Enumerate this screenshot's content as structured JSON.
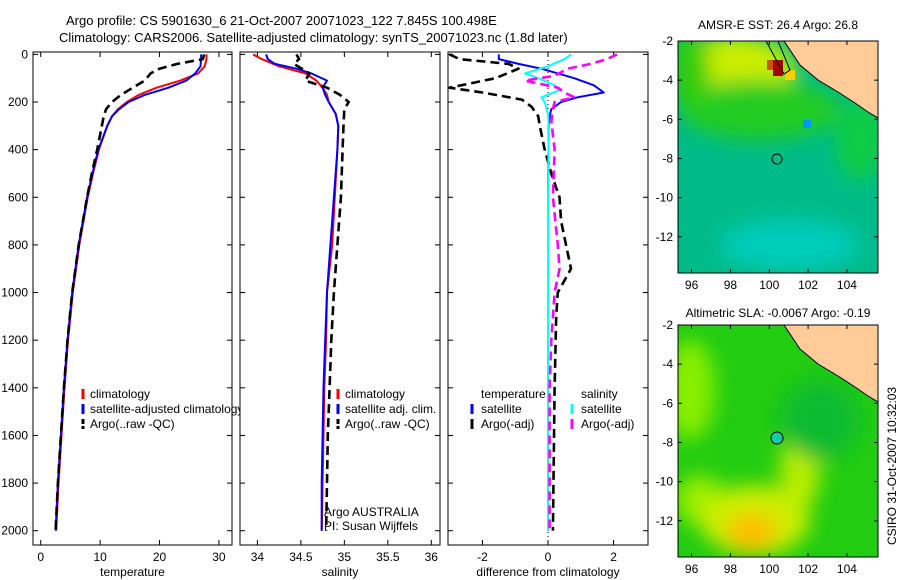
{
  "title": {
    "line1": "Argo profile: CS 5901630_6 21-Oct-2007 20071023_122 7.845S 100.498E",
    "line2": "Climatology: CARS2006. Satellite-adjusted climatology: synTS_20071023.nc (1.8d later)"
  },
  "colors": {
    "red": "#ff0000",
    "blue": "#0000ff",
    "black": "#000000",
    "cyan": "#00ffff",
    "magenta": "#ff00ff",
    "land": "#ffcc99"
  },
  "chart_data": [
    {
      "type": "line",
      "id": "temperature",
      "xlabel": "temperature",
      "ylabel": "",
      "xlim": [
        -1.3,
        32.2
      ],
      "ylim": [
        2060,
        -10
      ],
      "xticks": [
        0,
        10,
        20,
        30
      ],
      "yticks": [
        0,
        200,
        400,
        600,
        800,
        1000,
        1200,
        1400,
        1600,
        1800,
        2000
      ],
      "legend": [
        "climatology",
        "satellite-adjusted climatology",
        "Argo(..raw -QC)"
      ],
      "legend_position": "lower-right",
      "series": [
        {
          "name": "climatology",
          "color": "red",
          "style": "solid",
          "depth": [
            0,
            20,
            50,
            80,
            110,
            140,
            170,
            200,
            230,
            260,
            300,
            400,
            500,
            600,
            800,
            1000,
            1200,
            1400,
            1600,
            1800,
            2000
          ],
          "values": [
            27.9,
            27.9,
            27.6,
            26.5,
            23.5,
            19.5,
            16.5,
            14.5,
            13.0,
            12.0,
            11.2,
            9.8,
            8.8,
            7.9,
            6.5,
            5.4,
            4.6,
            4.0,
            3.5,
            3.0,
            2.6
          ]
        },
        {
          "name": "satellite-adjusted climatology",
          "color": "blue",
          "style": "solid",
          "depth": [
            0,
            20,
            50,
            80,
            110,
            140,
            170,
            200,
            230,
            260,
            300,
            400,
            500,
            600,
            800,
            1000,
            1200,
            1400,
            1600,
            1800,
            2000
          ],
          "values": [
            27.0,
            27.0,
            26.9,
            26.0,
            24.5,
            21.5,
            17.5,
            14.8,
            13.2,
            12.0,
            11.2,
            9.7,
            8.7,
            7.8,
            6.4,
            5.3,
            4.5,
            3.9,
            3.4,
            2.9,
            2.5
          ]
        },
        {
          "name": "Argo(..raw -QC)",
          "color": "black",
          "style": "dashed",
          "depth": [
            0,
            20,
            40,
            60,
            80,
            110,
            140,
            170,
            200,
            230,
            260,
            300,
            400,
            500,
            600,
            800,
            1000,
            1200,
            1400,
            1600,
            1800,
            2000
          ],
          "values": [
            27.5,
            27.3,
            23.0,
            20.0,
            18.5,
            17.5,
            15.5,
            13.5,
            12.0,
            11.0,
            10.6,
            10.3,
            9.5,
            8.6,
            7.8,
            6.4,
            5.3,
            4.5,
            3.9,
            3.4,
            2.9,
            2.5
          ]
        }
      ]
    },
    {
      "type": "line",
      "id": "salinity",
      "xlabel": "salinity",
      "xlim": [
        33.8,
        36.1
      ],
      "ylim": [
        2060,
        -10
      ],
      "xticks": [
        34,
        34.5,
        35,
        35.5,
        36
      ],
      "legend": [
        "climatology",
        "satellite adj. clim.",
        "Argo(..raw -QC)"
      ],
      "legend_position": "lower-right",
      "annotation": [
        "Argo AUSTRALIA",
        "PI: Susan Wijffels"
      ],
      "series": [
        {
          "name": "climatology",
          "color": "red",
          "style": "solid",
          "depth": [
            0,
            20,
            50,
            80,
            110,
            140,
            170,
            200,
            250,
            300,
            400,
            600,
            800,
            1000,
            1200,
            1400,
            1600,
            1800,
            2000
          ],
          "values": [
            33.95,
            34.05,
            34.25,
            34.55,
            34.68,
            34.75,
            34.8,
            34.82,
            34.9,
            34.93,
            34.92,
            34.89,
            34.86,
            34.8,
            34.79,
            34.77,
            34.76,
            34.75,
            34.74
          ]
        },
        {
          "name": "satellite adj. clim.",
          "color": "blue",
          "style": "solid",
          "depth": [
            0,
            20,
            40,
            60,
            80,
            110,
            140,
            170,
            200,
            250,
            300,
            400,
            600,
            800,
            1000,
            1200,
            1400,
            1600,
            1800,
            2000
          ],
          "values": [
            34.1,
            34.12,
            34.2,
            34.45,
            34.62,
            34.8,
            34.75,
            34.78,
            34.82,
            34.9,
            34.93,
            34.92,
            34.88,
            34.84,
            34.8,
            34.78,
            34.76,
            34.75,
            34.74,
            34.74
          ]
        },
        {
          "name": "Argo(..raw -QC)",
          "color": "black",
          "style": "dashed",
          "depth": [
            0,
            20,
            40,
            80,
            110,
            140,
            170,
            200,
            230,
            300,
            400,
            600,
            800,
            1000,
            1200,
            1400,
            1600,
            1800,
            2000
          ],
          "values": [
            34.45,
            34.48,
            34.42,
            34.6,
            34.55,
            34.8,
            34.95,
            35.05,
            35.0,
            34.99,
            34.98,
            34.96,
            34.92,
            34.88,
            34.85,
            34.83,
            34.81,
            34.8,
            34.79
          ]
        }
      ]
    },
    {
      "type": "line",
      "id": "difference",
      "xlabel": "difference from climatology",
      "xlim": [
        -3.05,
        3.05
      ],
      "ylim": [
        2060,
        -10
      ],
      "xticks": [
        -2,
        0,
        2
      ],
      "legend_headers": [
        "temperature",
        "salinity"
      ],
      "legend": [
        "satellite",
        "Argo(-adj)",
        "satellite",
        "Argo(-adj)"
      ],
      "legend_position": "lower-center",
      "series": [
        {
          "name": "temperature satellite",
          "color": "blue",
          "style": "solid",
          "depth": [
            0,
            20,
            40,
            60,
            80,
            100,
            130,
            160,
            180,
            200,
            230,
            260,
            300,
            600,
            1000,
            1400,
            2000
          ],
          "values": [
            -1.5,
            -1.5,
            -0.9,
            -0.2,
            0.3,
            0.8,
            1.4,
            1.7,
            0.9,
            0.4,
            0.1,
            0.05,
            0.02,
            0.0,
            0.0,
            0.0,
            0.0
          ]
        },
        {
          "name": "temperature Argo(-adj)",
          "color": "black",
          "style": "dashed",
          "depth": [
            0,
            20,
            40,
            60,
            100,
            140,
            160,
            190,
            220,
            260,
            300,
            400,
            500,
            600,
            700,
            800,
            900,
            950,
            1000,
            1100,
            1400,
            2000
          ],
          "values": [
            -3.0,
            -2.7,
            -1.2,
            -0.9,
            -1.6,
            -3.0,
            -2.0,
            -0.8,
            -0.5,
            -0.3,
            -0.25,
            -0.1,
            0.1,
            0.35,
            0.4,
            0.55,
            0.7,
            0.5,
            0.3,
            0.25,
            0.2,
            0.15
          ]
        },
        {
          "name": "salinity satellite",
          "color": "cyan",
          "style": "solid",
          "depth": [
            0,
            20,
            50,
            80,
            100,
            130,
            150,
            180,
            200,
            250,
            300,
            600,
            1000,
            1400,
            2000
          ],
          "values": [
            0.7,
            0.5,
            0.0,
            -0.7,
            -0.3,
            0.2,
            0.35,
            -0.2,
            -0.1,
            0.0,
            0.02,
            0.0,
            0.0,
            0.0,
            0.0
          ]
        },
        {
          "name": "salinity Argo(-adj)",
          "color": "magenta",
          "style": "dashed",
          "depth": [
            0,
            20,
            40,
            60,
            90,
            110,
            140,
            160,
            180,
            200,
            230,
            280,
            400,
            600,
            800,
            900,
            1000,
            1200,
            1400,
            2000
          ],
          "values": [
            2.1,
            1.8,
            1.3,
            0.6,
            0.2,
            -0.7,
            0.3,
            0.5,
            0.8,
            0.2,
            0.15,
            0.1,
            0.2,
            0.15,
            0.3,
            0.35,
            0.2,
            0.1,
            0.05,
            0.05
          ]
        }
      ]
    },
    {
      "type": "heatmap",
      "id": "sst-map",
      "title": "AMSR-E SST: 26.4 Argo: 26.8",
      "xlim": [
        95.3,
        105.6
      ],
      "ylim": [
        -13.85,
        -2
      ],
      "xticks": [
        96,
        98,
        100,
        102,
        104
      ],
      "yticks": [
        -2,
        -4,
        -6,
        -8,
        -10,
        -12
      ],
      "marker": {
        "lon": 100.498,
        "lat": -7.845
      }
    },
    {
      "type": "heatmap",
      "id": "sla-map",
      "title": "Altimetric SLA: -0.0067 Argo: -0.19",
      "xlim": [
        95.3,
        105.6
      ],
      "ylim": [
        -13.85,
        -2
      ],
      "xticks": [
        96,
        98,
        100,
        102,
        104
      ],
      "yticks": [
        -2,
        -4,
        -6,
        -8,
        -10,
        -12
      ],
      "marker": {
        "lon": 100.498,
        "lat": -7.845
      }
    }
  ],
  "footer": {
    "stamp": "CSIRO 31-Oct-2007 10:32:03"
  }
}
